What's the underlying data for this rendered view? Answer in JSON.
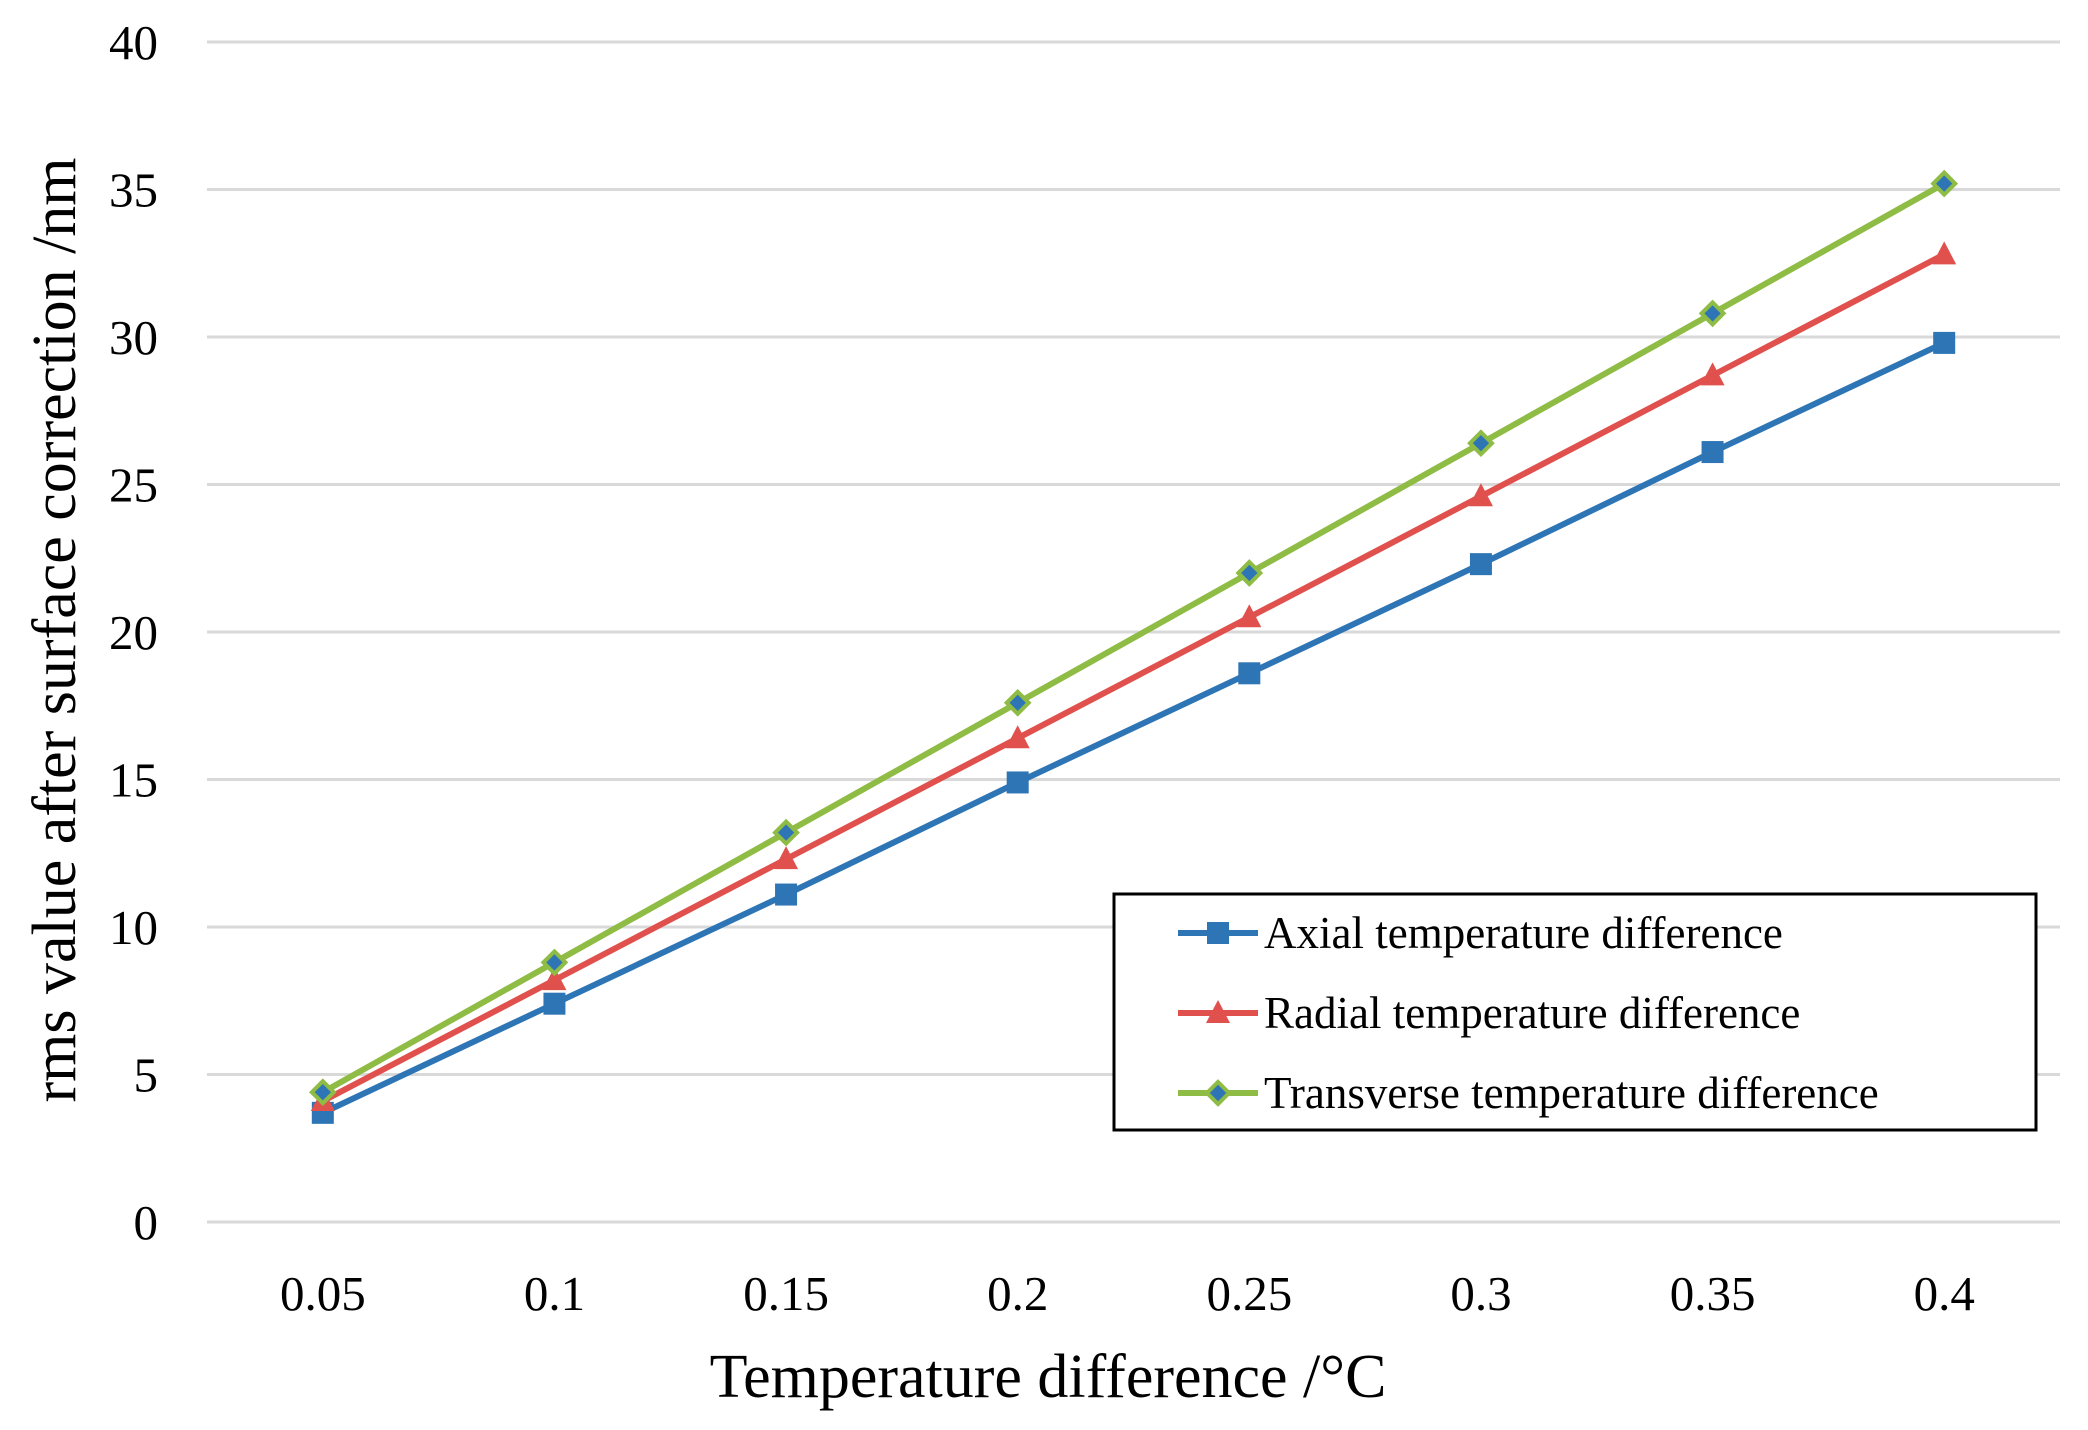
{
  "chart_data": {
    "type": "line",
    "title": "",
    "xlabel": "Temperature difference /°C",
    "ylabel": "rms value after surface correction /nm",
    "categories": [
      "0.05",
      "0.1",
      "0.15",
      "0.2",
      "0.25",
      "0.3",
      "0.35",
      "0.4"
    ],
    "ylim": [
      0,
      40
    ],
    "yticks": [
      0,
      5,
      10,
      15,
      20,
      25,
      30,
      35,
      40
    ],
    "grid": true,
    "legend_position": "bottom-right",
    "series": [
      {
        "name": "Axial temperature difference",
        "marker": "square",
        "color": "#2e75b6",
        "values": [
          3.7,
          7.4,
          11.1,
          14.9,
          18.6,
          22.3,
          26.1,
          29.8
        ]
      },
      {
        "name": "Radial temperature difference",
        "marker": "triangle",
        "color": "#e0504d",
        "values": [
          4.1,
          8.2,
          12.3,
          16.4,
          20.5,
          24.6,
          28.7,
          32.8
        ]
      },
      {
        "name": "Transverse temperature difference",
        "marker": "diamond",
        "color": "#8fbc45",
        "values": [
          4.4,
          8.8,
          13.2,
          17.6,
          22.0,
          26.4,
          30.8,
          35.2
        ]
      }
    ]
  }
}
